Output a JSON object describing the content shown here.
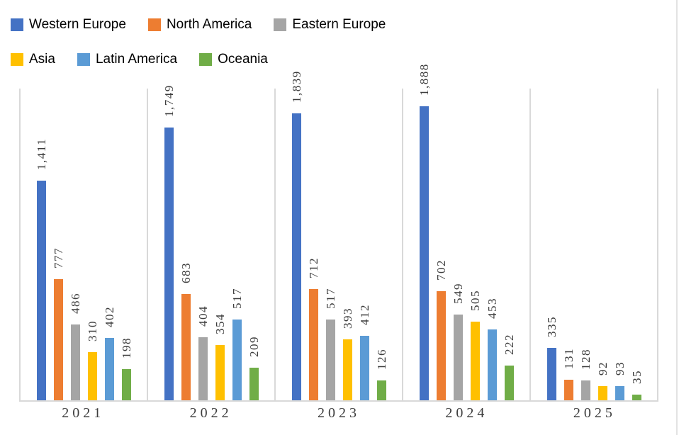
{
  "chart_data": {
    "type": "bar",
    "title": "",
    "categories": [
      "2021",
      "2022",
      "2023",
      "2024",
      "2025"
    ],
    "series": [
      {
        "name": "Western Europe",
        "color": "#4472C4",
        "values": [
          1411,
          1749,
          1839,
          1888,
          335
        ]
      },
      {
        "name": "North America",
        "color": "#ED7D31",
        "values": [
          777,
          683,
          712,
          702,
          131
        ]
      },
      {
        "name": "Eastern Europe",
        "color": "#A5A5A5",
        "values": [
          486,
          404,
          517,
          549,
          128
        ]
      },
      {
        "name": "Asia",
        "color": "#FFC000",
        "values": [
          310,
          354,
          393,
          505,
          92
        ]
      },
      {
        "name": "Latin America",
        "color": "#5B9BD5",
        "values": [
          402,
          517,
          412,
          453,
          93
        ]
      },
      {
        "name": "Oceania",
        "color": "#70AD47",
        "values": [
          198,
          209,
          126,
          222,
          35
        ]
      }
    ],
    "ylim": [
      0,
      2000
    ],
    "xlabel": "",
    "ylabel": "",
    "y_axis_visible": false,
    "grid": "vertical-category-dividers-only",
    "data_labels": {
      "visible": true,
      "rotation": -90,
      "position": "outside-end",
      "format": "#,##0"
    },
    "legend": {
      "position": "top-left",
      "rows": [
        [
          "Western Europe",
          "North America",
          "Eastern Europe"
        ],
        [
          "Asia",
          "Latin America",
          "Oceania"
        ]
      ]
    },
    "style": {
      "divider_color": "#D9D9D9",
      "axis_line_color": "#D9D9D9",
      "frame_edge_color": "#E3E3E3",
      "data_label_color": "#3D3D3D",
      "category_label_color": "#3D3D3D",
      "legend_text_color": "#000000",
      "background": "#FFFFFF"
    }
  }
}
